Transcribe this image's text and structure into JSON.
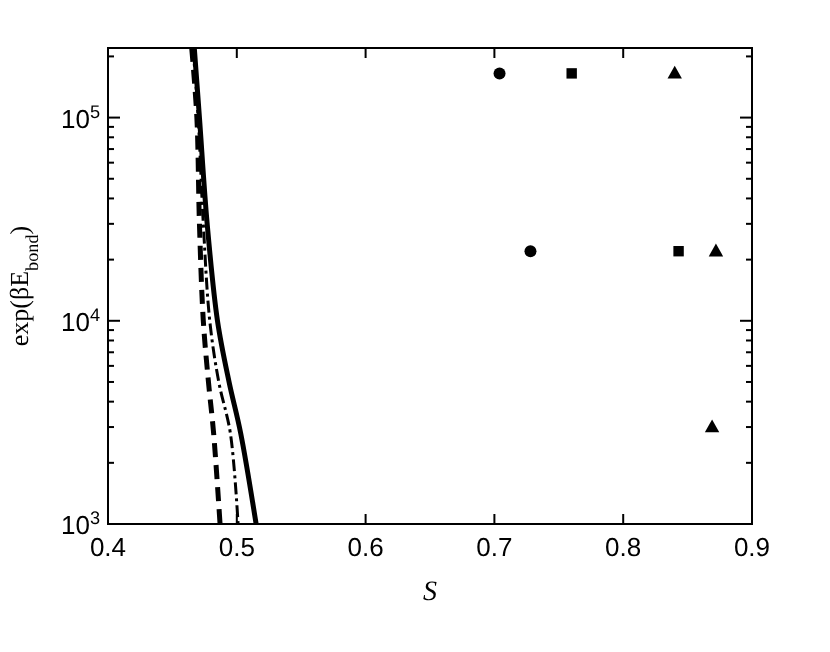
{
  "chart_data": {
    "type": "scatter",
    "xlabel": "S",
    "ylabel": "exp(βE$_{bond}$)",
    "log": "y",
    "grid": false,
    "xlim": [
      0.4,
      0.9
    ],
    "xticks": [
      0.4,
      0.5,
      0.6,
      0.7,
      0.8,
      0.9
    ],
    "ylim": [
      1000,
      220000
    ],
    "yticks": [
      {
        "value": 1000,
        "label": "10$^{3}$"
      },
      {
        "value": 2000,
        "label": null
      },
      {
        "value": 3000,
        "label": null
      },
      {
        "value": 4000,
        "label": null
      },
      {
        "value": 5000,
        "label": null
      },
      {
        "value": 6000,
        "label": null
      },
      {
        "value": 7000,
        "label": null
      },
      {
        "value": 8000,
        "label": null
      },
      {
        "value": 9000,
        "label": null
      },
      {
        "value": 10000,
        "label": "10$^{4}$"
      },
      {
        "value": 20000,
        "label": null
      },
      {
        "value": 30000,
        "label": null
      },
      {
        "value": 40000,
        "label": null
      },
      {
        "value": 50000,
        "label": null
      },
      {
        "value": 60000,
        "label": null
      },
      {
        "value": 70000,
        "label": null
      },
      {
        "value": 80000,
        "label": null
      },
      {
        "value": 90000,
        "label": null
      },
      {
        "value": 100000,
        "label": "10$^{5}$"
      },
      {
        "value": 200000,
        "label": null
      }
    ],
    "series": [
      {
        "type": "line",
        "line_style": "solid",
        "color": "#000000",
        "x": [
          0.467,
          0.471,
          0.477,
          0.485,
          0.494,
          0.503,
          0.515
        ],
        "values": [
          220000,
          100000,
          30000,
          10000,
          5000,
          2800,
          1000
        ]
      },
      {
        "type": "line",
        "line_style": "dashed",
        "color": "#000000",
        "x": [
          0.465,
          0.469,
          0.471,
          0.474,
          0.478,
          0.482,
          0.487
        ],
        "values": [
          220000,
          100000,
          30000,
          10000,
          5000,
          2800,
          1000
        ]
      },
      {
        "type": "line",
        "line_style": "dotted",
        "color": "#000000",
        "x": [
          0.466,
          0.47,
          0.474,
          0.479,
          0.486,
          0.495,
          0.501
        ],
        "values": [
          220000,
          100000,
          30000,
          10000,
          5000,
          2800,
          1000
        ]
      },
      {
        "marker": "circle",
        "color": "#000000",
        "x": [
          0.704,
          0.728
        ],
        "values": [
          165000,
          22000
        ]
      },
      {
        "marker": "square",
        "color": "#000000",
        "x": [
          0.76,
          0.843
        ],
        "values": [
          165000,
          22000
        ]
      },
      {
        "marker": "triangle",
        "color": "#000000",
        "x": [
          0.84,
          0.872,
          0.869
        ],
        "values": [
          165000,
          22000,
          3000
        ]
      }
    ]
  }
}
